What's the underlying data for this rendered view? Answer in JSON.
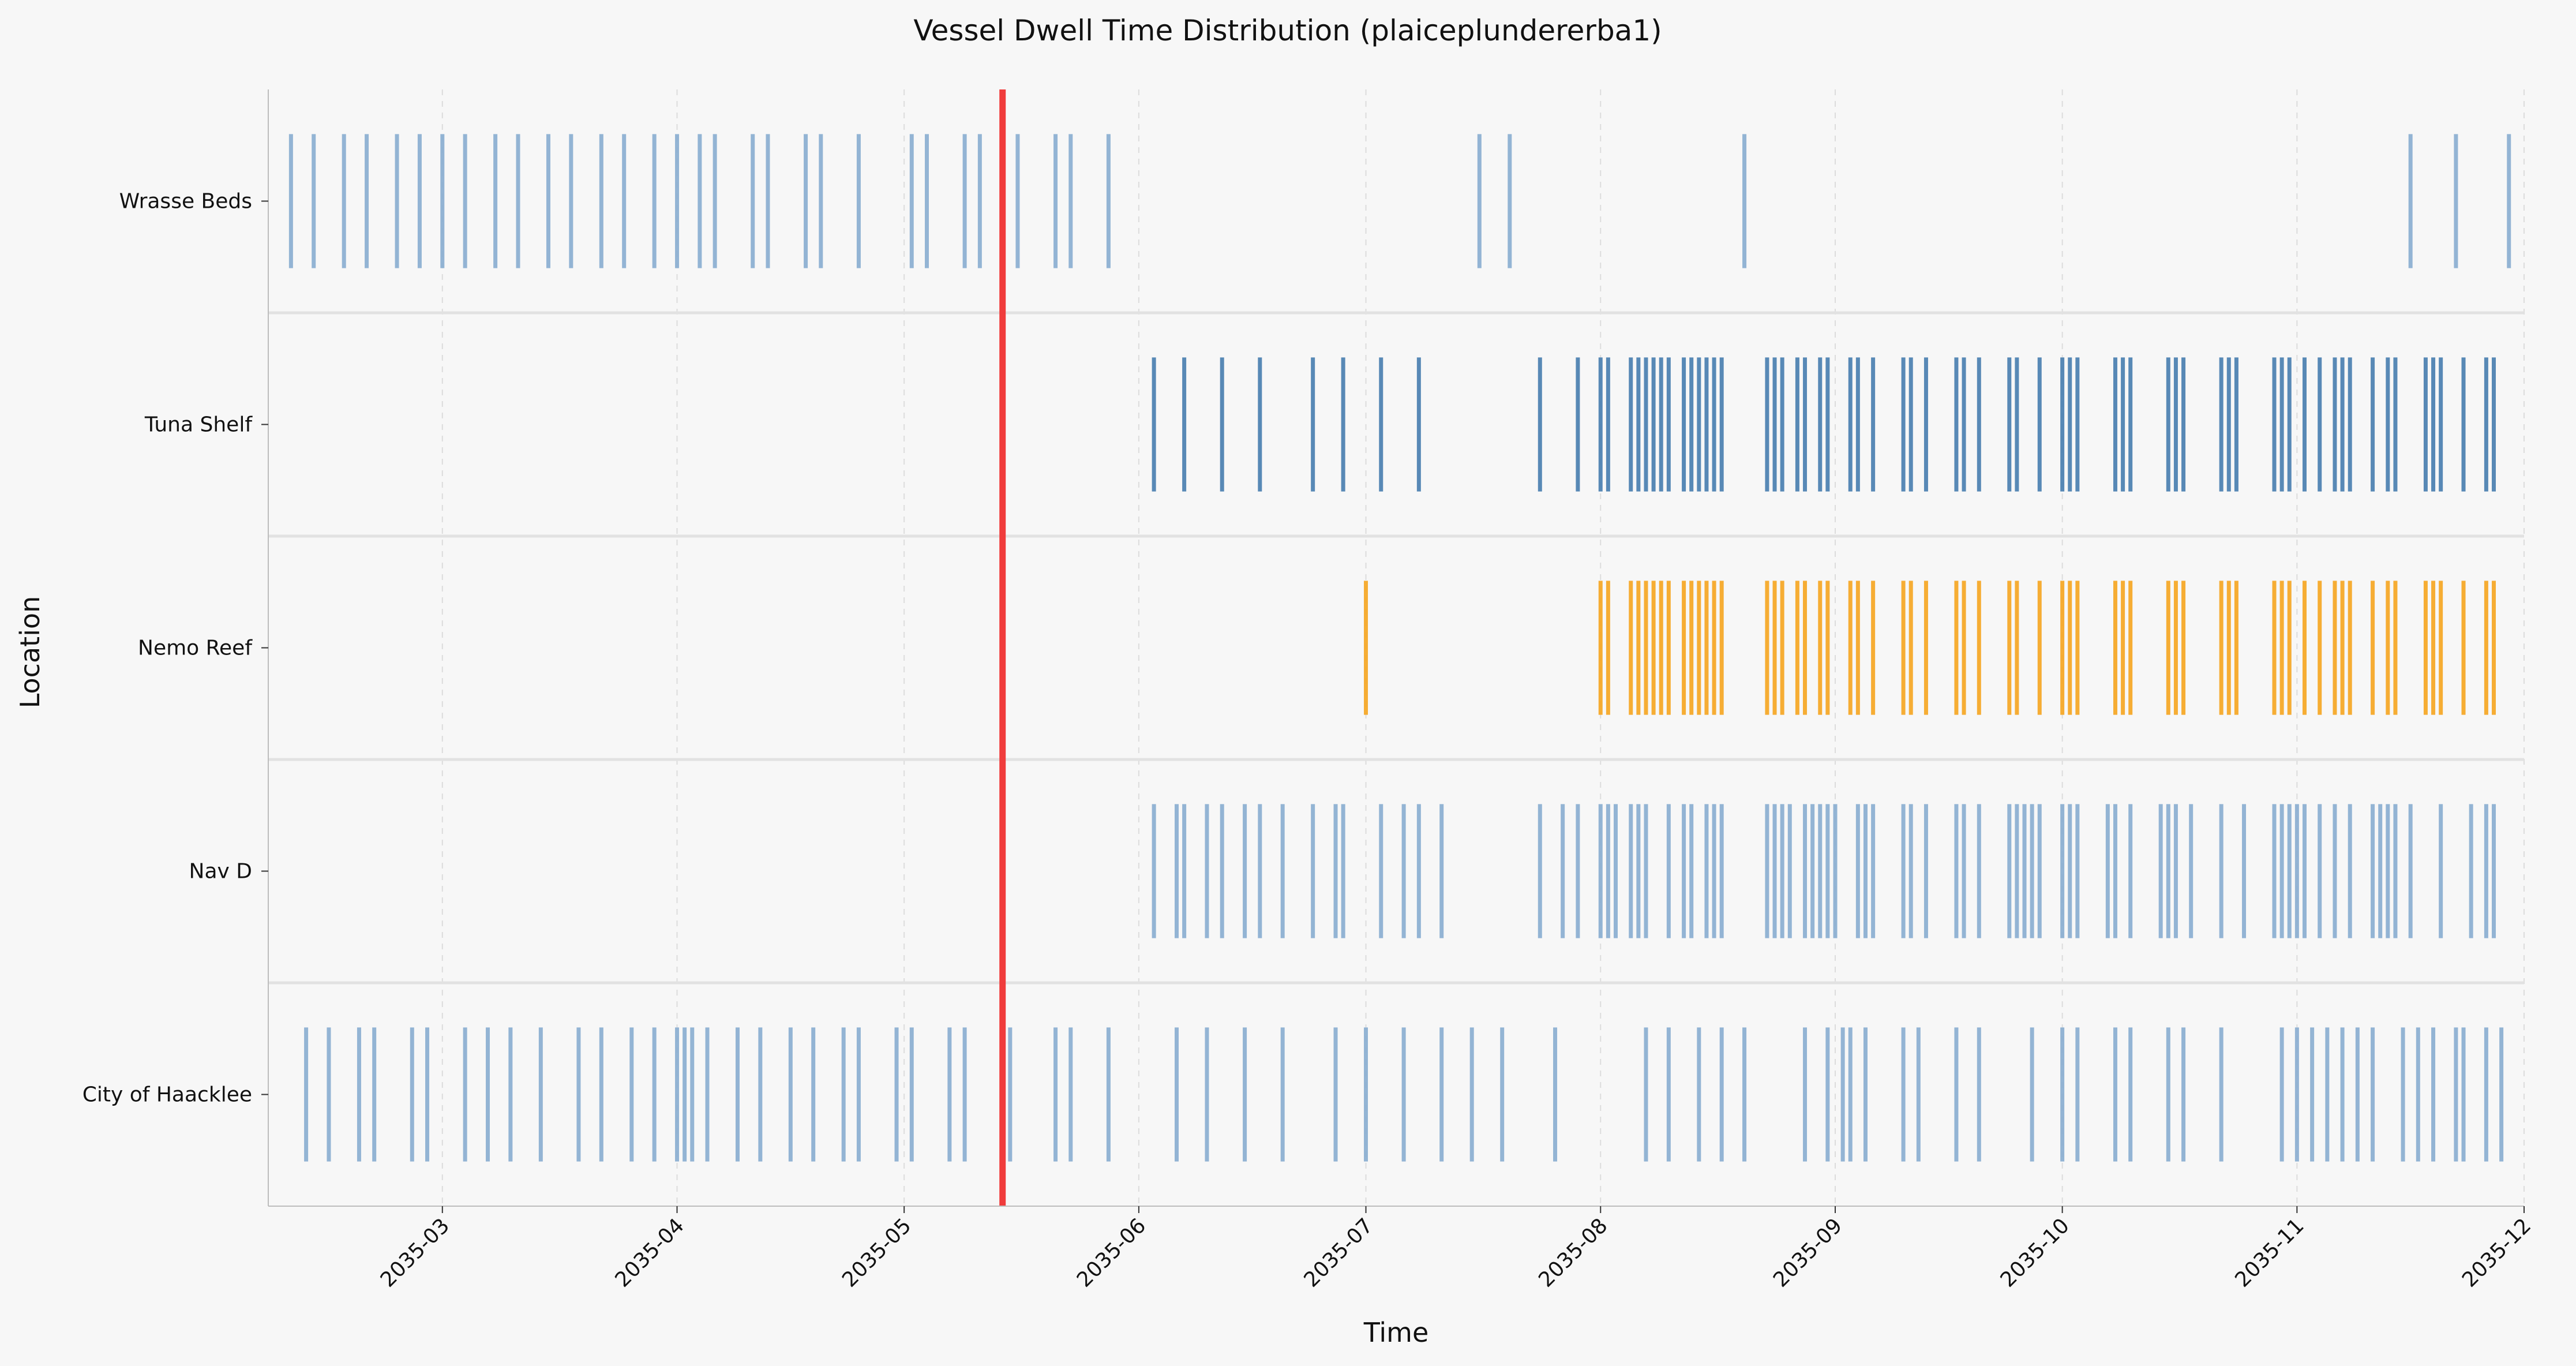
{
  "chart_data": {
    "type": "event-strip",
    "title": "Vessel Dwell Time Distribution (plaiceplundererba1)",
    "xlabel": "Time",
    "ylabel": "Location",
    "x_range": [
      "2035-02-06",
      "2035-12-01"
    ],
    "x_ticks": [
      "2035-03",
      "2035-04",
      "2035-05",
      "2035-06",
      "2035-07",
      "2035-08",
      "2035-09",
      "2035-10",
      "2035-11",
      "2035-12"
    ],
    "categories": [
      "Wrasse Beds",
      "Tuna Shelf",
      "Nemo Reef",
      "Nav D",
      "City of Haacklee"
    ],
    "grid": {
      "x": true,
      "style": "dashed"
    },
    "reference_line": {
      "date": "2035-05-14",
      "color": "#f03c3c"
    },
    "colors": {
      "default": "#8aaed0",
      "dense": "#4a7fb0",
      "highlight": "#f5a623",
      "reference": "#f03c3c"
    },
    "series": [
      {
        "location": "Wrasse Beds",
        "color": "#8aaed0",
        "dates": [
          "2035-02-09",
          "2035-02-12",
          "2035-02-16",
          "2035-02-19",
          "2035-02-23",
          "2035-02-26",
          "2035-03-01",
          "2035-03-04",
          "2035-03-08",
          "2035-03-11",
          "2035-03-15",
          "2035-03-18",
          "2035-03-22",
          "2035-03-25",
          "2035-03-29",
          "2035-04-01",
          "2035-04-04",
          "2035-04-06",
          "2035-04-11",
          "2035-04-13",
          "2035-04-18",
          "2035-04-20",
          "2035-04-25",
          "2035-05-02",
          "2035-05-04",
          "2035-05-09",
          "2035-05-11",
          "2035-05-16",
          "2035-05-21",
          "2035-05-23",
          "2035-05-28",
          "2035-07-16",
          "2035-07-20",
          "2035-08-20",
          "2035-11-16",
          "2035-11-22",
          "2035-11-29"
        ]
      },
      {
        "location": "Tuna Shelf",
        "color": "#4a7fb0",
        "dates": [
          "2035-06-03",
          "2035-06-07",
          "2035-06-12",
          "2035-06-17",
          "2035-06-24",
          "2035-06-28",
          "2035-07-03",
          "2035-07-08",
          "2035-07-24",
          "2035-07-29",
          "2035-08-01",
          "2035-08-02",
          "2035-08-05",
          "2035-08-06",
          "2035-08-07",
          "2035-08-08",
          "2035-08-09",
          "2035-08-10",
          "2035-08-12",
          "2035-08-13",
          "2035-08-14",
          "2035-08-15",
          "2035-08-16",
          "2035-08-17",
          "2035-08-23",
          "2035-08-24",
          "2035-08-25",
          "2035-08-27",
          "2035-08-28",
          "2035-08-30",
          "2035-08-31",
          "2035-09-03",
          "2035-09-04",
          "2035-09-06",
          "2035-09-10",
          "2035-09-11",
          "2035-09-13",
          "2035-09-17",
          "2035-09-18",
          "2035-09-20",
          "2035-09-24",
          "2035-09-25",
          "2035-09-28",
          "2035-10-01",
          "2035-10-02",
          "2035-10-03",
          "2035-10-08",
          "2035-10-09",
          "2035-10-10",
          "2035-10-15",
          "2035-10-16",
          "2035-10-17",
          "2035-10-22",
          "2035-10-23",
          "2035-10-24",
          "2035-10-29",
          "2035-10-30",
          "2035-10-31",
          "2035-11-02",
          "2035-11-04",
          "2035-11-06",
          "2035-11-07",
          "2035-11-08",
          "2035-11-11",
          "2035-11-13",
          "2035-11-14",
          "2035-11-18",
          "2035-11-19",
          "2035-11-20",
          "2035-11-23",
          "2035-11-26",
          "2035-11-27"
        ]
      },
      {
        "location": "Nemo Reef",
        "color": "#f5a623",
        "dates": [
          "2035-07-01",
          "2035-08-01",
          "2035-08-02",
          "2035-08-05",
          "2035-08-06",
          "2035-08-07",
          "2035-08-08",
          "2035-08-09",
          "2035-08-10",
          "2035-08-12",
          "2035-08-13",
          "2035-08-14",
          "2035-08-15",
          "2035-08-16",
          "2035-08-17",
          "2035-08-23",
          "2035-08-24",
          "2035-08-25",
          "2035-08-27",
          "2035-08-28",
          "2035-08-30",
          "2035-08-31",
          "2035-09-03",
          "2035-09-04",
          "2035-09-06",
          "2035-09-10",
          "2035-09-11",
          "2035-09-13",
          "2035-09-17",
          "2035-09-18",
          "2035-09-20",
          "2035-09-24",
          "2035-09-25",
          "2035-09-28",
          "2035-10-01",
          "2035-10-02",
          "2035-10-03",
          "2035-10-08",
          "2035-10-09",
          "2035-10-10",
          "2035-10-15",
          "2035-10-16",
          "2035-10-17",
          "2035-10-22",
          "2035-10-23",
          "2035-10-24",
          "2035-10-29",
          "2035-10-30",
          "2035-10-31",
          "2035-11-02",
          "2035-11-04",
          "2035-11-06",
          "2035-11-07",
          "2035-11-08",
          "2035-11-11",
          "2035-11-13",
          "2035-11-14",
          "2035-11-18",
          "2035-11-19",
          "2035-11-20",
          "2035-11-23",
          "2035-11-26",
          "2035-11-27"
        ]
      },
      {
        "location": "Nav D",
        "color": "#8aaed0",
        "dates": [
          "2035-06-03",
          "2035-06-06",
          "2035-06-07",
          "2035-06-10",
          "2035-06-12",
          "2035-06-15",
          "2035-06-17",
          "2035-06-20",
          "2035-06-24",
          "2035-06-27",
          "2035-06-28",
          "2035-07-03",
          "2035-07-06",
          "2035-07-08",
          "2035-07-11",
          "2035-07-24",
          "2035-07-27",
          "2035-07-29",
          "2035-08-01",
          "2035-08-02",
          "2035-08-03",
          "2035-08-05",
          "2035-08-06",
          "2035-08-07",
          "2035-08-10",
          "2035-08-12",
          "2035-08-13",
          "2035-08-15",
          "2035-08-16",
          "2035-08-17",
          "2035-08-23",
          "2035-08-24",
          "2035-08-25",
          "2035-08-26",
          "2035-08-28",
          "2035-08-29",
          "2035-08-30",
          "2035-08-31",
          "2035-09-01",
          "2035-09-04",
          "2035-09-05",
          "2035-09-06",
          "2035-09-10",
          "2035-09-11",
          "2035-09-13",
          "2035-09-17",
          "2035-09-18",
          "2035-09-20",
          "2035-09-24",
          "2035-09-25",
          "2035-09-26",
          "2035-09-27",
          "2035-09-28",
          "2035-10-01",
          "2035-10-02",
          "2035-10-03",
          "2035-10-07",
          "2035-10-08",
          "2035-10-10",
          "2035-10-14",
          "2035-10-15",
          "2035-10-16",
          "2035-10-18",
          "2035-10-22",
          "2035-10-25",
          "2035-10-29",
          "2035-10-30",
          "2035-10-31",
          "2035-11-01",
          "2035-11-02",
          "2035-11-04",
          "2035-11-06",
          "2035-11-08",
          "2035-11-11",
          "2035-11-12",
          "2035-11-13",
          "2035-11-14",
          "2035-11-16",
          "2035-11-20",
          "2035-11-24",
          "2035-11-26",
          "2035-11-27"
        ]
      },
      {
        "location": "City of Haacklee",
        "color": "#8aaed0",
        "dates": [
          "2035-02-11",
          "2035-02-14",
          "2035-02-18",
          "2035-02-20",
          "2035-02-25",
          "2035-02-27",
          "2035-03-04",
          "2035-03-07",
          "2035-03-10",
          "2035-03-14",
          "2035-03-19",
          "2035-03-22",
          "2035-03-26",
          "2035-03-29",
          "2035-04-01",
          "2035-04-02",
          "2035-04-03",
          "2035-04-05",
          "2035-04-09",
          "2035-04-12",
          "2035-04-16",
          "2035-04-19",
          "2035-04-23",
          "2035-04-25",
          "2035-04-30",
          "2035-05-02",
          "2035-05-07",
          "2035-05-09",
          "2035-05-15",
          "2035-05-21",
          "2035-05-23",
          "2035-05-28",
          "2035-06-06",
          "2035-06-10",
          "2035-06-15",
          "2035-06-20",
          "2035-06-27",
          "2035-07-01",
          "2035-07-06",
          "2035-07-11",
          "2035-07-15",
          "2035-07-19",
          "2035-07-26",
          "2035-08-07",
          "2035-08-10",
          "2035-08-14",
          "2035-08-17",
          "2035-08-20",
          "2035-08-28",
          "2035-08-31",
          "2035-09-02",
          "2035-09-03",
          "2035-09-05",
          "2035-09-10",
          "2035-09-12",
          "2035-09-17",
          "2035-09-20",
          "2035-09-27",
          "2035-10-01",
          "2035-10-03",
          "2035-10-08",
          "2035-10-10",
          "2035-10-15",
          "2035-10-17",
          "2035-10-22",
          "2035-10-30",
          "2035-11-01",
          "2035-11-03",
          "2035-11-05",
          "2035-11-07",
          "2035-11-09",
          "2035-11-11",
          "2035-11-15",
          "2035-11-17",
          "2035-11-19",
          "2035-11-22",
          "2035-11-23",
          "2035-11-26",
          "2035-11-28"
        ]
      }
    ]
  }
}
